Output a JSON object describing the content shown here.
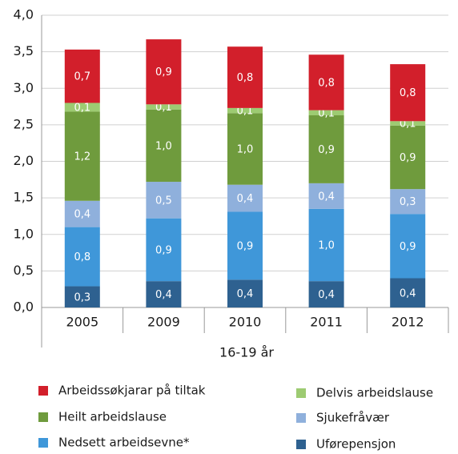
{
  "chart_data": {
    "type": "stacked_bar",
    "categories": [
      "2005",
      "2009",
      "2010",
      "2011",
      "2012"
    ],
    "x_label": "16-19 år",
    "ylim": [
      0,
      4
    ],
    "yticks": [
      {
        "value": 0,
        "label": "0,0"
      },
      {
        "value": 0.5,
        "label": "0,5"
      },
      {
        "value": 1,
        "label": "1,0"
      },
      {
        "value": 1.5,
        "label": "1,5"
      },
      {
        "value": 2,
        "label": "2,0"
      },
      {
        "value": 2.5,
        "label": "2,5"
      },
      {
        "value": 3,
        "label": "3,0"
      },
      {
        "value": 3.5,
        "label": "3,5"
      },
      {
        "value": 4,
        "label": "4,0"
      }
    ],
    "grid": true,
    "series": [
      {
        "name": "Uførepensjon",
        "color": "#2e6190",
        "values": [
          0.29,
          0.36,
          0.38,
          0.36,
          0.4
        ],
        "value_labels": [
          "0,3",
          "0,4",
          "0,4",
          "0,4",
          "0,4"
        ]
      },
      {
        "name": "Nedsett arbeidsevne*",
        "color": "#3f97d9",
        "values": [
          0.81,
          0.86,
          0.93,
          0.99,
          0.88
        ],
        "value_labels": [
          "0,8",
          "0,9",
          "0,9",
          "1,0",
          "0,9"
        ]
      },
      {
        "name": "Sjukefråvær",
        "color": "#8fb0dc",
        "values": [
          0.36,
          0.5,
          0.37,
          0.35,
          0.34
        ],
        "value_labels": [
          "0,4",
          "0,5",
          "0,4",
          "0,4",
          "0,3"
        ]
      },
      {
        "name": "Heilt arbeidslause",
        "color": "#6f9b3d",
        "values": [
          1.22,
          0.99,
          0.98,
          0.93,
          0.87
        ],
        "value_labels": [
          "1,2",
          "1,0",
          "1,0",
          "0,9",
          "0,9"
        ]
      },
      {
        "name": "Delvis arbeidslause",
        "color": "#9dcb72",
        "values": [
          0.12,
          0.07,
          0.07,
          0.07,
          0.06
        ],
        "value_labels": [
          "0,1",
          "0,1",
          "0,1",
          "0,1",
          "0,1"
        ]
      },
      {
        "name": "Arbeidssøkjarar på tiltak",
        "color": "#d21f2b",
        "values": [
          0.73,
          0.89,
          0.84,
          0.76,
          0.78
        ],
        "value_labels": [
          "0,7",
          "0,9",
          "0,8",
          "0,8",
          "0,8"
        ]
      }
    ]
  }
}
